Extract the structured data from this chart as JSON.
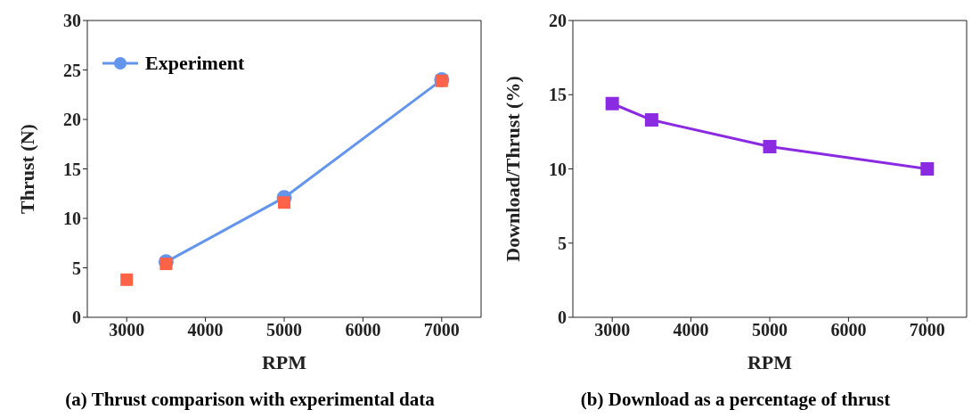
{
  "chart_data": [
    {
      "type": "line",
      "title": "(a) Thrust comparison with experimental data",
      "xlabel": "RPM",
      "ylabel": "Thrust (N)",
      "xlim": [
        2500,
        7500
      ],
      "xticks": [
        3000,
        4000,
        5000,
        6000,
        7000
      ],
      "ylim": [
        0,
        30
      ],
      "yticks": [
        0,
        5,
        10,
        15,
        20,
        25,
        30
      ],
      "grid": false,
      "legend": "top left",
      "series": [
        {
          "name": "Experiment",
          "type": "line",
          "marker": "circle",
          "color": "#6495ed",
          "x": [
            3500,
            5000,
            7000
          ],
          "values": [
            5.6,
            12.1,
            24.0
          ]
        },
        {
          "type": "scatter",
          "marker": "square",
          "color": "#ff6347",
          "x": [
            3000,
            3500,
            5000,
            7000
          ],
          "values": [
            3.8,
            5.4,
            11.6,
            23.9
          ]
        }
      ]
    },
    {
      "type": "line",
      "title": "(b) Download as a percentage of thrust",
      "xlabel": "RPM",
      "ylabel": "Download/Thrust (%)",
      "xlim": [
        2500,
        7500
      ],
      "xticks": [
        3000,
        4000,
        5000,
        6000,
        7000
      ],
      "ylim": [
        0,
        20
      ],
      "yticks": [
        0,
        5,
        10,
        15,
        20
      ],
      "grid": false,
      "legend": false,
      "series": [
        {
          "type": "line",
          "marker": "square",
          "color": "#8a2be2",
          "x": [
            3000,
            3500,
            5000,
            7000
          ],
          "values": [
            14.4,
            13.3,
            11.5,
            10.0
          ]
        }
      ]
    }
  ]
}
